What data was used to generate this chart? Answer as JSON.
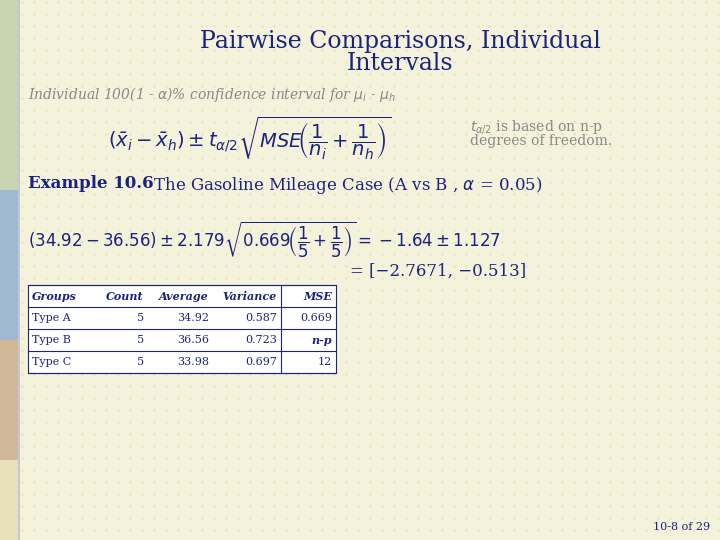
{
  "bg_color": "#f5f2dc",
  "sidebar_bg": "#e8e8e8",
  "title_color": "#1a237e",
  "subtitle_color": "#888888",
  "text_color": "#1a237e",
  "gray_text": "#999999",
  "title": "Pairwise Comparisons, Individual\nIntervals",
  "subtitle": "Individual 100(1 - $\\alpha$)% confidence interval for $\\mu_i$ - $\\mu_h$",
  "example_bold": "Example 10.6",
  "example_rest": "  The Gasoline Mileage Case (A vs B , $\\alpha$ = 0.05)",
  "formula_note_line1": "$t_{\\alpha/2}$ is based on n-p",
  "formula_note_line2": "degrees of freedom.",
  "calc_line3": "= [−2.7671, −0.513]",
  "table_headers": [
    "Groups",
    "Count",
    "Average",
    "Variance",
    "MSE"
  ],
  "table_rows": [
    [
      "Type A",
      "5",
      "34.92",
      "0.587",
      "0.669"
    ],
    [
      "Type B",
      "5",
      "36.56",
      "0.723",
      "n-p"
    ],
    [
      "Type C",
      "5",
      "33.98",
      "0.697",
      "12"
    ]
  ],
  "page_num": "10-8 of 29",
  "font_family": "serif"
}
